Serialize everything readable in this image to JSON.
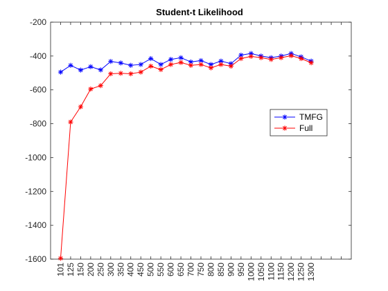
{
  "chart_data": {
    "type": "line",
    "title": "Student-t Likelihood",
    "xlabel": "",
    "ylabel": "",
    "categories": [
      "101",
      "125",
      "150",
      "200",
      "250",
      "300",
      "350",
      "400",
      "450",
      "500",
      "550",
      "600",
      "650",
      "700",
      "750",
      "800",
      "850",
      "900",
      "950",
      "1000",
      "1050",
      "1100",
      "1150",
      "1200",
      "1250",
      "1300"
    ],
    "x_extra_slots": 3,
    "ylim": [
      -1600,
      -200
    ],
    "yticks": [
      -200,
      -400,
      -600,
      -800,
      -1000,
      -1200,
      -1400,
      -1600
    ],
    "grid": false,
    "legend_position": "right-middle",
    "series": [
      {
        "name": "TMFG",
        "color": "#0000ff",
        "marker": "asterisk",
        "values": [
          -495,
          -455,
          -483,
          -463,
          -482,
          -432,
          -441,
          -455,
          -450,
          -415,
          -450,
          -420,
          -410,
          -435,
          -427,
          -450,
          -430,
          -445,
          -395,
          -385,
          -400,
          -410,
          -400,
          -385,
          -405,
          -430
        ]
      },
      {
        "name": "Full",
        "color": "#ff0000",
        "marker": "asterisk",
        "values": [
          -1595,
          -790,
          -700,
          -595,
          -575,
          -505,
          -502,
          -505,
          -495,
          -460,
          -480,
          -450,
          -438,
          -455,
          -450,
          -470,
          -450,
          -460,
          -415,
          -402,
          -410,
          -420,
          -410,
          -398,
          -415,
          -440
        ]
      }
    ]
  }
}
